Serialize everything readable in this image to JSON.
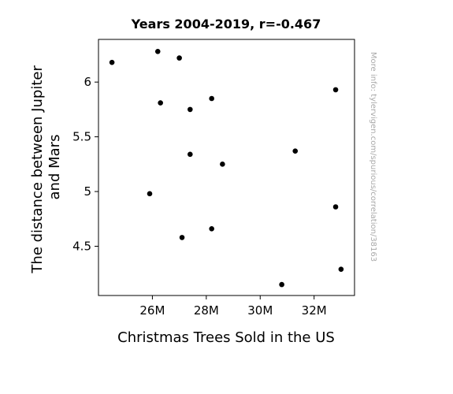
{
  "chart_data": {
    "type": "scatter",
    "title": "Years 2004-2019, r=-0.467",
    "xlabel": "Christmas Trees Sold in the US",
    "ylabel": "The distance between Jupiter and Mars",
    "ylabel_lines": [
      "The distance between Jupiter",
      "and Mars"
    ],
    "watermark": "More info: tylervigen.com/spurious/correlation/38163",
    "xlim": [
      24000000,
      33500000
    ],
    "ylim": [
      4.05,
      6.39
    ],
    "x_ticks": [
      {
        "value": 26000000,
        "label": "26M"
      },
      {
        "value": 28000000,
        "label": "28M"
      },
      {
        "value": 30000000,
        "label": "30M"
      },
      {
        "value": 32000000,
        "label": "32M"
      }
    ],
    "y_ticks": [
      {
        "value": 4.5,
        "label": "4.5"
      },
      {
        "value": 5,
        "label": "5"
      },
      {
        "value": 5.5,
        "label": "5.5"
      },
      {
        "value": 6,
        "label": "6"
      }
    ],
    "grid": false,
    "legend": "none",
    "marker_color": "#000000",
    "points": [
      {
        "x": 24500000,
        "y": 6.18
      },
      {
        "x": 26200000,
        "y": 6.28
      },
      {
        "x": 27000000,
        "y": 6.22
      },
      {
        "x": 26300000,
        "y": 5.81
      },
      {
        "x": 27400000,
        "y": 5.75
      },
      {
        "x": 28200000,
        "y": 5.85
      },
      {
        "x": 32800000,
        "y": 5.93
      },
      {
        "x": 27400000,
        "y": 5.34
      },
      {
        "x": 28600000,
        "y": 5.25
      },
      {
        "x": 31300000,
        "y": 5.37
      },
      {
        "x": 25900000,
        "y": 4.98
      },
      {
        "x": 32800000,
        "y": 4.86
      },
      {
        "x": 28200000,
        "y": 4.66
      },
      {
        "x": 27100000,
        "y": 4.58
      },
      {
        "x": 30800000,
        "y": 4.15
      },
      {
        "x": 33000000,
        "y": 4.29
      }
    ]
  }
}
